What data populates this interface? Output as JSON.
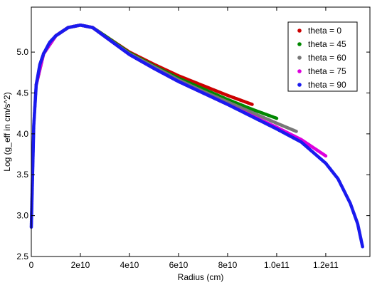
{
  "chart_data": {
    "type": "scatter",
    "title": "",
    "xlabel": "Radius (cm)",
    "ylabel": "Log (g_eff in cm/s^2)",
    "xlim": [
      0,
      138000000000.0
    ],
    "ylim": [
      2.5,
      5.55
    ],
    "x_ticks": [
      0,
      20000000000.0,
      40000000000.0,
      60000000000.0,
      80000000000.0,
      100000000000.0,
      120000000000.0
    ],
    "x_tick_labels": [
      "0",
      "2e10",
      "4e10",
      "6e10",
      "8e10",
      "1.0e11",
      "1.2e11"
    ],
    "y_ticks": [
      2.5,
      3.0,
      3.5,
      4.0,
      4.5,
      5.0
    ],
    "y_tick_labels": [
      "2.5",
      "3.0",
      "3.5",
      "4.0",
      "4.5",
      "5.0"
    ],
    "grid": false,
    "legend_position": "top-right",
    "series": [
      {
        "name": "theta = 0",
        "color": "#cc0000",
        "x": [
          2000000000.0,
          5000000000.0,
          10000000000.0,
          15000000000.0,
          20000000000.0,
          25000000000.0,
          30000000000.0,
          40000000000.0,
          50000000000.0,
          60000000000.0,
          70000000000.0,
          80000000000.0,
          90000000000.0
        ],
        "y": [
          4.6,
          4.98,
          5.2,
          5.3,
          5.33,
          5.3,
          5.2,
          5.0,
          4.85,
          4.71,
          4.59,
          4.47,
          4.36
        ]
      },
      {
        "name": "theta = 45",
        "color": "#008800",
        "x": [
          2000000000.0,
          5000000000.0,
          10000000000.0,
          15000000000.0,
          20000000000.0,
          25000000000.0,
          30000000000.0,
          40000000000.0,
          50000000000.0,
          60000000000.0,
          70000000000.0,
          80000000000.0,
          90000000000.0,
          100000000000.0
        ],
        "y": [
          4.6,
          4.98,
          5.2,
          5.3,
          5.33,
          5.3,
          5.2,
          4.99,
          4.83,
          4.68,
          4.55,
          4.42,
          4.3,
          4.19
        ]
      },
      {
        "name": "theta = 60",
        "color": "#777777",
        "x": [
          2000000000.0,
          5000000000.0,
          10000000000.0,
          15000000000.0,
          20000000000.0,
          25000000000.0,
          30000000000.0,
          40000000000.0,
          50000000000.0,
          60000000000.0,
          70000000000.0,
          80000000000.0,
          90000000000.0,
          100000000000.0,
          108000000000.0
        ],
        "y": [
          4.6,
          4.98,
          5.2,
          5.3,
          5.33,
          5.3,
          5.19,
          4.98,
          4.82,
          4.66,
          4.52,
          4.39,
          4.26,
          4.13,
          4.03
        ]
      },
      {
        "name": "theta = 75",
        "color": "#dd00dd",
        "x": [
          2000000000.0,
          5000000000.0,
          10000000000.0,
          15000000000.0,
          20000000000.0,
          25000000000.0,
          30000000000.0,
          40000000000.0,
          50000000000.0,
          60000000000.0,
          70000000000.0,
          80000000000.0,
          90000000000.0,
          100000000000.0,
          110000000000.0,
          120000000000.0
        ],
        "y": [
          4.6,
          4.98,
          5.2,
          5.3,
          5.33,
          5.3,
          5.19,
          4.97,
          4.8,
          4.64,
          4.5,
          4.36,
          4.22,
          4.08,
          3.93,
          3.73
        ]
      },
      {
        "name": "theta = 90",
        "color": "#1a1aee",
        "x": [
          0,
          1000000000.0,
          2000000000.0,
          3500000000.0,
          5000000000.0,
          7500000000.0,
          10000000000.0,
          15000000000.0,
          20000000000.0,
          25000000000.0,
          30000000000.0,
          40000000000.0,
          50000000000.0,
          60000000000.0,
          70000000000.0,
          80000000000.0,
          90000000000.0,
          100000000000.0,
          110000000000.0,
          120000000000.0,
          125000000000.0,
          130000000000.0,
          133000000000.0,
          135000000000.0
        ],
        "y": [
          2.86,
          4.1,
          4.6,
          4.85,
          4.98,
          5.12,
          5.2,
          5.3,
          5.33,
          5.3,
          5.19,
          4.97,
          4.8,
          4.64,
          4.5,
          4.36,
          4.21,
          4.06,
          3.9,
          3.64,
          3.45,
          3.15,
          2.9,
          2.62
        ]
      }
    ]
  }
}
